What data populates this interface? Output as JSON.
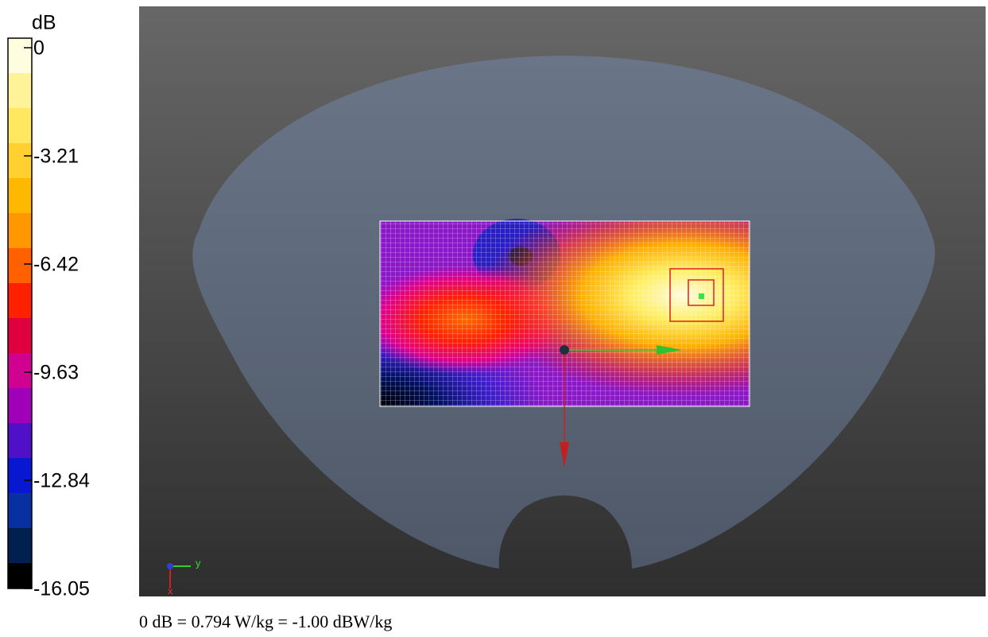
{
  "colorbar": {
    "unit": "dB",
    "ticks": [
      0,
      -3.21,
      -6.42,
      -9.63,
      -12.84,
      -16.05
    ]
  },
  "caption": "0 dB = 0.794 W/kg = -1.00 dBW/kg",
  "axes": {
    "y": "y",
    "x": "x"
  }
}
